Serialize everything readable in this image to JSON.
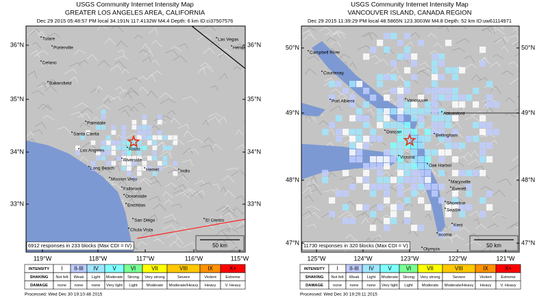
{
  "panels": [
    {
      "title": "USGS Community Internet Intensity Map",
      "subtitle": "GREATER LOS ANGELES AREA, CALIFORNIA",
      "info": "Dec 29 2015 05:48:57 PM local 34.191N 117.4132W M4.4 Depth: 6 km ID:ci37507576",
      "lat_labels": [
        "36°N",
        "35°N",
        "34°N",
        "33°N"
      ],
      "lon_labels": [
        "119°W",
        "118°W",
        "117°W",
        "116°W",
        "115°W"
      ],
      "cities": [
        "Tulare",
        "Porterville",
        "Las Vegas",
        "Hender",
        "Delano",
        "Bakersfield",
        "Palmdale",
        "Santa Clarita",
        "Los Angeles",
        "Rialto",
        "Riverside",
        "Long Beach",
        "Hemet",
        "Indio",
        "Mission Viejo",
        "Fallbrook",
        "Oceanside",
        "Encinitas",
        "San Diego",
        "Chula Vista",
        "El Centro"
      ],
      "responses": "6912 responses in 233 blocks (Max CDI = IV)",
      "scale": "50 km",
      "processed": "Processed: Wed Dec 30 19:10:46 2015"
    },
    {
      "title": "USGS Community Internet Intensity Map",
      "subtitle": "VANCOUVER ISLAND, CANADA REGION",
      "info": "Dec 29 2015 11:39:29 PM local 48.5865N 123.3003W M4.8 Depth: 52 km ID:uw61114971",
      "lat_labels": [
        "50°N",
        "49°N",
        "48°N",
        "47°N"
      ],
      "lon_labels": [
        "125°W",
        "124°W",
        "123°W",
        "122°W",
        "121°W"
      ],
      "cities": [
        "Campbell River",
        "Courtenay",
        "Port Alberni",
        "Vancouver",
        "Abbotsford",
        "Duncan",
        "Bellingham",
        "Victoria",
        "Oak Harbor",
        "Marysville",
        "Everett",
        "Shoreline",
        "Seattle",
        "Kent",
        "acoma",
        "Olympia"
      ],
      "responses": "11730 responses in 320 blocks (Max CDI = V)",
      "scale": "50 km",
      "processed": "Processed: Wed Dec 30 19:29:11 2015"
    }
  ],
  "legend": {
    "row_labels": [
      "INTENSITY",
      "SHAKING",
      "DAMAGE"
    ],
    "intensity": [
      "I",
      "II-III",
      "IV",
      "V",
      "VI",
      "VII",
      "VIII",
      "IX",
      "X+"
    ],
    "shaking": [
      "Not felt",
      "Weak",
      "Light",
      "Moderate",
      "Strong",
      "Very strong",
      "Severe",
      "Violent",
      "Extreme"
    ],
    "damage": [
      "none",
      "none",
      "none",
      "Very light",
      "Light",
      "Moderate",
      "Moderate/Heavy",
      "Heavy",
      "V. Heavy"
    ],
    "colors": [
      "#ffffff",
      "#bfccff",
      "#a0e6ff",
      "#80ffff",
      "#7aff93",
      "#ffff00",
      "#ffc800",
      "#ff9100",
      "#ff0000"
    ]
  }
}
